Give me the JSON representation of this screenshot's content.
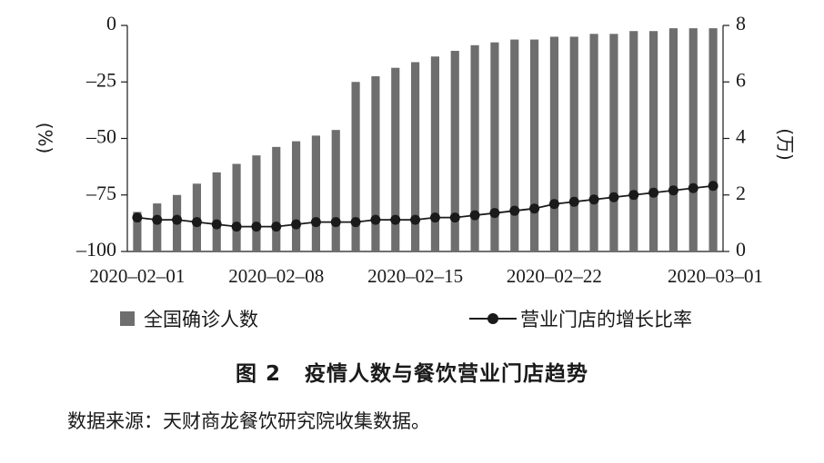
{
  "chart_data": {
    "type": "bar",
    "x_tick_labels": [
      "2020–02–01",
      "2020–02–08",
      "2020–02–15",
      "2020–02–22",
      "2020–03–01"
    ],
    "left_axis": {
      "unit_label": "(%)",
      "ticks": [
        "0",
        "–25",
        "–50",
        "–75",
        "–100"
      ],
      "ylim": [
        -100,
        0
      ]
    },
    "right_axis": {
      "unit_label": "(万)",
      "ticks": [
        "8",
        "6",
        "4",
        "2",
        "0"
      ],
      "ylim": [
        0,
        8
      ]
    },
    "series": [
      {
        "name": "全国确诊人数",
        "type": "bar",
        "axis": "right",
        "color": "#6e6e6e",
        "values": [
          1.4,
          1.7,
          2.0,
          2.4,
          2.8,
          3.1,
          3.4,
          3.7,
          3.9,
          4.1,
          4.3,
          6.0,
          6.2,
          6.5,
          6.7,
          6.9,
          7.1,
          7.3,
          7.4,
          7.5,
          7.5,
          7.6,
          7.6,
          7.7,
          7.7,
          7.8,
          7.8,
          7.9,
          7.9,
          7.9
        ]
      },
      {
        "name": "营业门店的增长比率",
        "type": "line",
        "axis": "left",
        "color": "#1a1a1a",
        "values": [
          -85,
          -86,
          -86,
          -87,
          -88,
          -89,
          -89,
          -89,
          -88,
          -87,
          -87,
          -87,
          -86,
          -86,
          -86,
          -85,
          -85,
          -84,
          -83,
          -82,
          -81,
          -79,
          -78,
          -77,
          -76,
          -75,
          -74,
          -73,
          -72,
          -71
        ]
      }
    ],
    "grid": false
  },
  "caption": {
    "number": "图 2",
    "text": "疫情人数与餐饮营业门店趋势"
  },
  "source": "数据来源：天财商龙餐饮研究院收集数据。"
}
